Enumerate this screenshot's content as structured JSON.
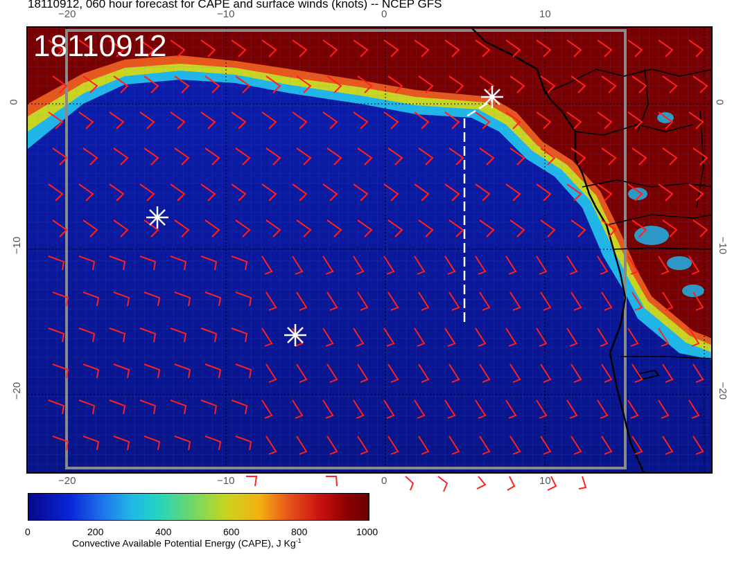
{
  "header": {
    "title": "18110912, 060 hour forecast for CAPE and surface winds (knots) -- NCEP GFS",
    "stamp": "18110912"
  },
  "axes": {
    "lon_labels": [
      "−20",
      "−10",
      "0",
      "10"
    ],
    "lat_labels": [
      "0",
      "−10",
      "−20"
    ]
  },
  "colorbar": {
    "ticks": [
      "0",
      "200",
      "400",
      "600",
      "800",
      "1000"
    ],
    "label": "Convective Available Potential Energy (CAPE), J Kg",
    "label_sup": "-1"
  },
  "map": {
    "ocean_color": "#0a1a9c",
    "land_cape_color": "#7a0000",
    "wind_barb_color": "#ff2020",
    "track_color": "#ffffff",
    "markers": [
      "asterisk",
      "asterisk",
      "asterisk"
    ]
  }
}
